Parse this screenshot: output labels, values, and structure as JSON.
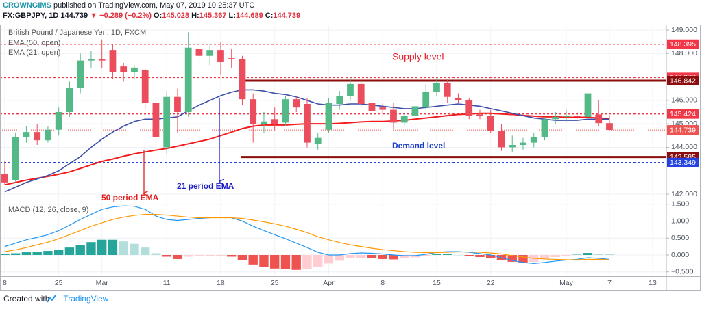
{
  "header": {
    "publisher": "CROWNGIMS",
    "published": "published on TradingView.com, May 07, 2019 10:25:37 UTC",
    "symbol": "FX:GBPJPY, 1D",
    "last": "144.739",
    "change": "▼ −0.289 (−0.2%)",
    "ohlc": [
      {
        "label": "O:",
        "value": "145.028"
      },
      {
        "label": "H:",
        "value": "145.367"
      },
      {
        "label": "L:",
        "value": "144.689"
      },
      {
        "label": "C:",
        "value": "144.739"
      }
    ]
  },
  "footer": {
    "text": "Created with",
    "brand": "TradingView"
  },
  "chart_data": [
    {
      "type": "candlestick",
      "title": "British Pound / Japanese Yen, 1D, FXCM",
      "open": [
        142.85,
        142.6,
        144.45,
        144.65,
        144.3,
        144.75,
        145.5,
        146.55,
        147.7,
        147.75,
        148.15,
        147.45,
        147.2,
        147.3,
        145.9,
        144.0,
        146.15,
        145.5,
        148.2,
        147.9,
        148.15,
        147.8,
        147.75,
        146.05,
        145.0,
        145.2,
        145.05,
        146.05,
        145.85,
        144.15,
        144.75,
        145.85,
        146.2,
        146.7,
        145.9,
        145.7,
        145.6,
        145.05,
        145.35,
        145.7,
        146.35,
        146.75,
        146.1,
        146.0,
        145.4,
        145.35,
        144.7,
        144.0,
        144.1,
        144.2,
        144.45,
        145.2,
        145.3,
        145.35,
        145.3,
        145.4,
        145.028
      ],
      "high": [
        143.4,
        144.6,
        144.9,
        145.0,
        144.9,
        145.7,
        146.8,
        148.0,
        148.1,
        148.6,
        148.4,
        147.6,
        147.5,
        147.4,
        146.1,
        146.4,
        146.5,
        148.9,
        148.8,
        148.4,
        148.5,
        148.2,
        147.9,
        146.3,
        145.5,
        145.7,
        146.2,
        146.2,
        146.1,
        144.6,
        146.1,
        146.4,
        147.0,
        146.9,
        146.1,
        145.9,
        145.9,
        145.5,
        145.9,
        146.7,
        147.0,
        146.9,
        146.3,
        146.1,
        145.6,
        145.6,
        145.0,
        144.5,
        144.4,
        144.6,
        145.3,
        145.5,
        145.6,
        145.5,
        146.4,
        146.0,
        145.367
      ],
      "low": [
        142.4,
        142.5,
        144.2,
        144.1,
        144.2,
        144.5,
        145.3,
        146.3,
        147.4,
        147.4,
        146.9,
        146.8,
        146.9,
        145.6,
        144.0,
        143.7,
        144.6,
        145.3,
        147.6,
        147.5,
        147.1,
        147.4,
        145.8,
        144.2,
        144.6,
        144.7,
        144.9,
        145.5,
        144.0,
        143.9,
        144.6,
        145.6,
        146.0,
        145.7,
        145.3,
        145.4,
        144.8,
        144.9,
        145.2,
        145.6,
        146.2,
        145.9,
        145.9,
        145.2,
        145.2,
        144.6,
        143.85,
        143.8,
        143.9,
        144.0,
        144.3,
        145.0,
        145.1,
        145.2,
        145.1,
        144.9,
        144.689
      ],
      "close": [
        142.5,
        144.45,
        144.65,
        144.3,
        144.75,
        145.5,
        146.55,
        147.7,
        147.75,
        147.7,
        147.2,
        147.2,
        147.4,
        145.9,
        144.45,
        146.15,
        145.5,
        148.25,
        147.9,
        148.15,
        147.65,
        147.75,
        146.05,
        145.0,
        145.1,
        145.0,
        146.05,
        145.7,
        144.2,
        144.4,
        145.9,
        146.2,
        146.7,
        145.85,
        145.55,
        145.6,
        145.05,
        145.35,
        145.75,
        146.35,
        146.75,
        146.15,
        146.0,
        145.35,
        145.35,
        144.7,
        144.0,
        144.1,
        144.2,
        144.45,
        145.2,
        145.3,
        145.35,
        145.3,
        146.3,
        145.03,
        144.739
      ],
      "up_color": "#53b987",
      "down_color": "#eb4d5c",
      "series": [
        {
          "name": "EMA (50, open)",
          "color": "#f21c1c",
          "width": 2,
          "values": [
            142.4,
            142.5,
            142.6,
            142.68,
            142.76,
            142.85,
            142.95,
            143.1,
            143.25,
            143.4,
            143.5,
            143.62,
            143.72,
            143.8,
            143.88,
            143.95,
            144.05,
            144.15,
            144.25,
            144.35,
            144.5,
            144.65,
            144.8,
            144.9,
            144.95,
            144.95,
            144.95,
            144.98,
            145.0,
            145.0,
            145.0,
            145.02,
            145.05,
            145.08,
            145.1,
            145.1,
            145.12,
            145.15,
            145.2,
            145.25,
            145.3,
            145.35,
            145.4,
            145.42,
            145.45,
            145.45,
            145.42,
            145.4,
            145.36,
            145.33,
            145.3,
            145.3,
            145.28,
            145.28,
            145.28,
            145.25,
            145.22
          ]
        },
        {
          "name": "EMA (21, open)",
          "color": "#3c4fa8",
          "width": 1.6,
          "values": [
            142.1,
            142.3,
            142.5,
            142.65,
            142.8,
            143.0,
            143.3,
            143.6,
            144.0,
            144.35,
            144.65,
            144.9,
            145.1,
            145.2,
            145.2,
            145.25,
            145.3,
            145.55,
            145.8,
            146.0,
            146.2,
            146.35,
            146.45,
            146.45,
            146.4,
            146.3,
            146.25,
            146.15,
            146.0,
            145.85,
            145.8,
            145.8,
            145.85,
            145.85,
            145.8,
            145.75,
            145.7,
            145.65,
            145.65,
            145.7,
            145.75,
            145.8,
            145.85,
            145.8,
            145.75,
            145.65,
            145.55,
            145.45,
            145.35,
            145.25,
            145.2,
            145.15,
            145.15,
            145.15,
            145.2,
            145.2,
            145.2
          ]
        }
      ],
      "levels": [
        {
          "value": 148.395,
          "label": "148.395",
          "color": "#f23645",
          "style": "dashed"
        },
        {
          "value": 146.977,
          "label": "146.977",
          "color": "#f23645",
          "style": "dashed"
        },
        {
          "value": 146.842,
          "label": "146.842",
          "color": "#8b0d0d",
          "style": "solid"
        },
        {
          "value": 145.424,
          "label": "145.424",
          "color": "#f23645",
          "style": "dashed"
        },
        {
          "value": 144.739,
          "label": "144.739",
          "color": "#ef5350",
          "style": "dotted"
        },
        {
          "value": 143.585,
          "label": "143.585",
          "color": "#8b0d0d",
          "style": "solid"
        },
        {
          "value": 143.349,
          "label": "143.349",
          "color": "#2443e0",
          "style": "dashed"
        }
      ],
      "annotations": [
        "Supply level",
        "Demand level",
        "50 period EMA",
        "21 period EMA"
      ],
      "xlim": [
        -0.44,
        61.27
      ],
      "ylim": [
        141.68,
        149.175
      ],
      "yticks": [
        {
          "value": 142,
          "label": "142.000"
        },
        {
          "value": 144,
          "label": "144.000"
        },
        {
          "value": 145,
          "label": "145.000"
        },
        {
          "value": 146,
          "label": "146.000"
        },
        {
          "value": 148,
          "label": "148.000"
        },
        {
          "value": 149,
          "label": "149.000"
        }
      ],
      "xticks": [
        {
          "value": 0,
          "label": "8"
        },
        {
          "value": 5,
          "label": "25"
        },
        {
          "value": 9,
          "label": "Mar"
        },
        {
          "value": 15,
          "label": "11"
        },
        {
          "value": 20,
          "label": "18"
        },
        {
          "value": 25,
          "label": "25"
        },
        {
          "value": 30,
          "label": "Apr"
        },
        {
          "value": 35,
          "label": "8"
        },
        {
          "value": 40,
          "label": "15"
        },
        {
          "value": 45,
          "label": "22"
        },
        {
          "value": 52,
          "label": "May"
        },
        {
          "value": 56,
          "label": "7"
        },
        {
          "value": 60,
          "label": "13"
        }
      ],
      "grid": true
    },
    {
      "type": "macd",
      "title": "MACD (12, 26, close, 9)",
      "histogram": [
        0.03,
        0.05,
        0.08,
        0.1,
        0.12,
        0.16,
        0.22,
        0.3,
        0.38,
        0.45,
        0.45,
        0.4,
        0.33,
        0.22,
        0.05,
        -0.05,
        -0.12,
        -0.05,
        -0.03,
        -0.02,
        -0.02,
        -0.05,
        -0.15,
        -0.28,
        -0.36,
        -0.4,
        -0.42,
        -0.44,
        -0.42,
        -0.36,
        -0.25,
        -0.17,
        -0.1,
        -0.08,
        -0.1,
        -0.12,
        -0.13,
        -0.1,
        -0.07,
        -0.03,
        0.02,
        0.02,
        0.0,
        -0.03,
        -0.06,
        -0.09,
        -0.15,
        -0.2,
        -0.22,
        -0.2,
        -0.12,
        -0.06,
        -0.02,
        0.01,
        0.06,
        0.04,
        0.02
      ],
      "histogram_colors": {
        "pos_up": "#26a69a",
        "pos_down": "#b2dfdb",
        "neg_down": "#ef5350",
        "neg_up": "#ffcdd2"
      },
      "series": [
        {
          "color": "#2196f3",
          "values": [
            0.25,
            0.35,
            0.45,
            0.52,
            0.6,
            0.72,
            0.88,
            1.05,
            1.2,
            1.35,
            1.42,
            1.45,
            1.44,
            1.35,
            1.15,
            1.05,
            1.02,
            1.05,
            1.08,
            1.1,
            1.12,
            1.1,
            1.0,
            0.85,
            0.72,
            0.6,
            0.48,
            0.35,
            0.22,
            0.08,
            0.0,
            0.0,
            0.04,
            0.06,
            0.05,
            0.03,
            0.0,
            -0.02,
            -0.02,
            0.02,
            0.08,
            0.1,
            0.1,
            0.08,
            0.04,
            0.0,
            -0.08,
            -0.16,
            -0.22,
            -0.25,
            -0.22,
            -0.18,
            -0.15,
            -0.13,
            -0.08,
            -0.1,
            -0.13
          ]
        },
        {
          "color": "#ff9800",
          "values": [
            0.1,
            0.15,
            0.22,
            0.3,
            0.38,
            0.48,
            0.6,
            0.72,
            0.85,
            0.95,
            1.05,
            1.12,
            1.17,
            1.2,
            1.2,
            1.18,
            1.15,
            1.12,
            1.1,
            1.1,
            1.1,
            1.1,
            1.08,
            1.03,
            0.98,
            0.92,
            0.85,
            0.76,
            0.66,
            0.54,
            0.45,
            0.37,
            0.3,
            0.25,
            0.2,
            0.16,
            0.13,
            0.1,
            0.08,
            0.07,
            0.07,
            0.08,
            0.09,
            0.09,
            0.08,
            0.06,
            0.03,
            -0.02,
            -0.06,
            -0.1,
            -0.12,
            -0.13,
            -0.14,
            -0.14,
            -0.13,
            -0.13,
            -0.14
          ]
        }
      ],
      "xlim": [
        -0.44,
        61.27
      ],
      "ylim": [
        -0.626,
        1.535
      ],
      "yticks": [
        {
          "value": 1.5,
          "label": "1.500"
        },
        {
          "value": 1,
          "label": "1.000"
        },
        {
          "value": 0.5,
          "label": "0.500"
        },
        {
          "value": 0,
          "label": "0.000"
        },
        {
          "value": -0.5,
          "label": "−0.500"
        }
      ],
      "grid": true
    }
  ]
}
